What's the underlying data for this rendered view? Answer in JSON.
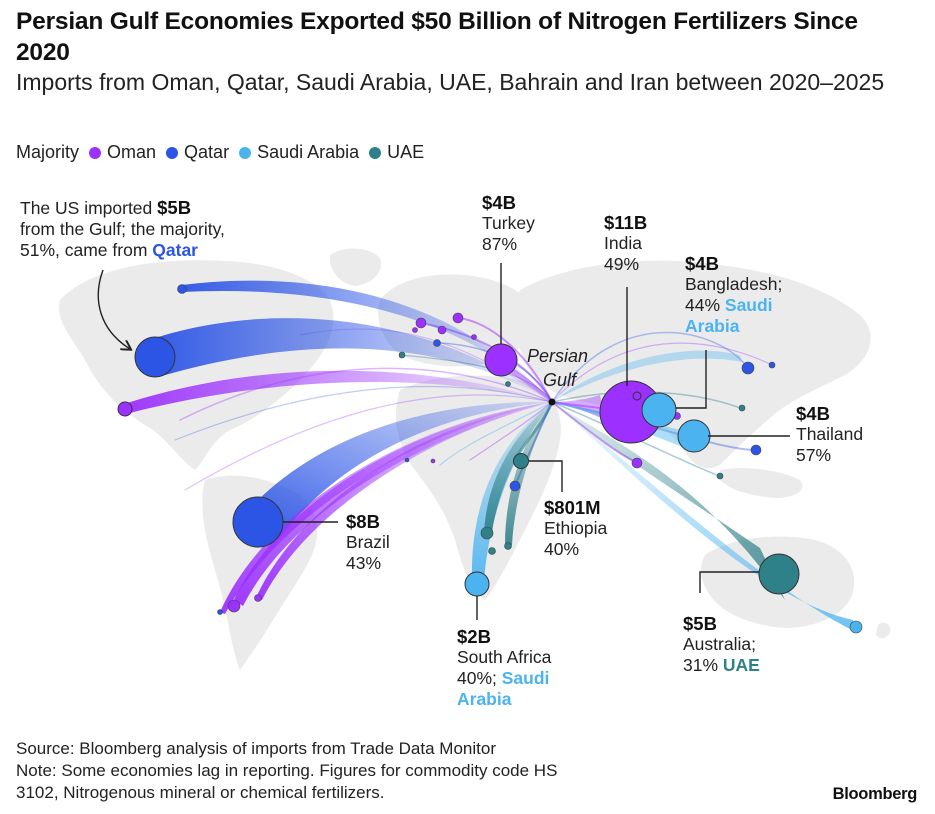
{
  "title": "Persian Gulf Economies Exported $50 Billion of Nitrogen Fertilizers Since 2020",
  "subtitle": "Imports from Oman, Qatar, Saudi Arabia, UAE, Bahrain and Iran between 2020–2025",
  "legend": {
    "label": "Majority",
    "items": [
      {
        "name": "Oman",
        "color": "#9b30ff"
      },
      {
        "name": "Qatar",
        "color": "#2c55e6"
      },
      {
        "name": "Saudi Arabia",
        "color": "#4ab3f0"
      },
      {
        "name": "UAE",
        "color": "#2e8089"
      }
    ]
  },
  "hub_label": {
    "line1": "Persian",
    "line2": "Gulf"
  },
  "annotations": {
    "us": {
      "line1_pre": "The US imported ",
      "line1_value": "$5B",
      "line2": "from the Gulf; the majority,",
      "line3_pre": "51%, came from ",
      "line3_country": "Qatar"
    },
    "turkey": {
      "value": "$4B",
      "place": "Turkey",
      "share": "87%"
    },
    "india": {
      "value": "$11B",
      "place": "India",
      "share": "49%"
    },
    "bangladesh": {
      "value": "$4B",
      "place": "Bangladesh;",
      "share_pre": "44% ",
      "country_line1": "Saudi",
      "country_line2": "Arabia"
    },
    "thailand": {
      "value": "$4B",
      "place": "Thailand",
      "share": "57%"
    },
    "brazil": {
      "value": "$8B",
      "place": "Brazil",
      "share": "43%"
    },
    "ethiopia": {
      "value": "$801M",
      "place": "Ethiopia",
      "share": "40%"
    },
    "south_africa": {
      "value": "$2B",
      "place": "South Africa",
      "share_pre": "40%; ",
      "country_line1": "Saudi",
      "country_line2": "Arabia"
    },
    "australia": {
      "value": "$5B",
      "place": "Australia;",
      "share_pre": "31% ",
      "country": "UAE"
    }
  },
  "source": "Source: Bloomberg analysis of imports from Trade Data Monitor",
  "note_line1": "Note: Some economies lag in reporting. Figures for commodity code HS",
  "note_line2": "3102, Nitrogenous mineral or chemical fertilizers.",
  "logo": "Bloomberg"
}
